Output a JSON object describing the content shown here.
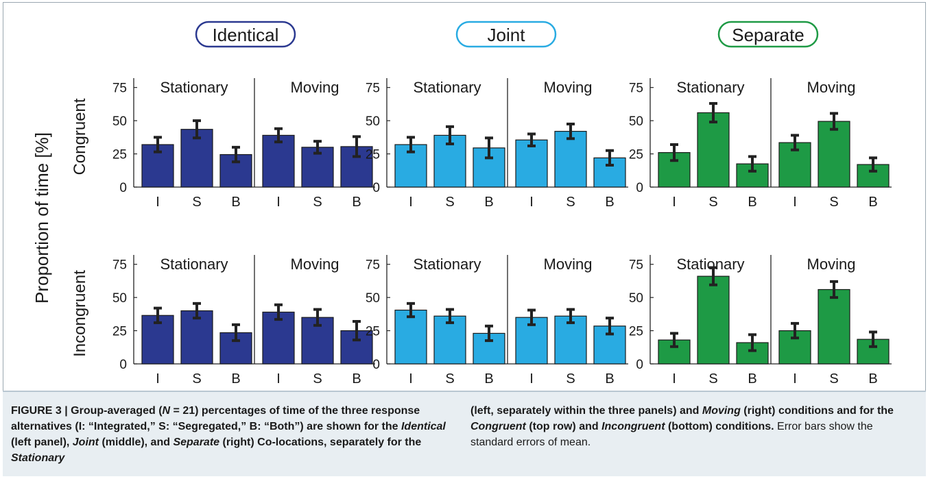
{
  "colors": {
    "identical": "#2b3990",
    "joint": "#29abe2",
    "separate": "#1e9a45",
    "text": "#1a1a1a"
  },
  "ylabel": "Proportion of time [%]",
  "row_labels": [
    "Congruent",
    "Incongruent"
  ],
  "panel_titles": [
    "Identical",
    "Joint",
    "Separate"
  ],
  "subplot_titles": [
    "Stationary",
    "Moving"
  ],
  "chart_data": {
    "type": "bar",
    "categories": [
      "I",
      "S",
      "B"
    ],
    "yticks": [
      "0",
      "25",
      "50",
      "75"
    ],
    "ylim": [
      0,
      80
    ],
    "values": {
      "Identical": {
        "Congruent": {
          "Stationary": [
            32,
            43.5,
            24.5
          ],
          "Moving": [
            39,
            30,
            30.5
          ]
        },
        "Incongruent": {
          "Stationary": [
            36.5,
            40,
            23.5
          ],
          "Moving": [
            39,
            35,
            25
          ]
        }
      },
      "Joint": {
        "Congruent": {
          "Stationary": [
            32,
            39,
            29.5
          ],
          "Moving": [
            35.5,
            42,
            22
          ]
        },
        "Incongruent": {
          "Stationary": [
            40.5,
            36,
            23
          ],
          "Moving": [
            35,
            36,
            28.5
          ]
        }
      },
      "Separate": {
        "Congruent": {
          "Stationary": [
            26,
            56,
            17.5
          ],
          "Moving": [
            33.5,
            49.5,
            17
          ]
        },
        "Incongruent": {
          "Stationary": [
            18,
            66,
            16
          ],
          "Moving": [
            25,
            56,
            18.5
          ]
        }
      }
    },
    "errors": {
      "Identical": {
        "Congruent": {
          "Stationary": [
            5.5,
            6.5,
            5.5
          ],
          "Moving": [
            5,
            4.5,
            7.5
          ]
        },
        "Incongruent": {
          "Stationary": [
            5.5,
            5.5,
            6
          ],
          "Moving": [
            5.5,
            6,
            7
          ]
        }
      },
      "Joint": {
        "Congruent": {
          "Stationary": [
            5.5,
            6.5,
            7.5
          ],
          "Moving": [
            4.5,
            5.5,
            5.5
          ]
        },
        "Incongruent": {
          "Stationary": [
            5,
            5,
            5.5
          ],
          "Moving": [
            5.5,
            5,
            6
          ]
        }
      },
      "Separate": {
        "Congruent": {
          "Stationary": [
            6,
            7,
            5.5
          ],
          "Moving": [
            5.5,
            6,
            5
          ]
        },
        "Incongruent": {
          "Stationary": [
            5,
            6.5,
            6
          ],
          "Moving": [
            5.5,
            6,
            5.5
          ]
        }
      }
    }
  },
  "caption": {
    "label": "FIGURE 3 | ",
    "p1": "Group-averaged (",
    "n": "N",
    "p2": " = 21) percentages of time of the three response alternatives (I: “Integrated,” S: “Segregated,” B: “Both”) are shown for the ",
    "identical": "Identical",
    "p3": " (left panel), ",
    "joint": "Joint",
    "p4": " (middle), and ",
    "separate": "Separate",
    "p5": " (right) Co-locations, separately for the ",
    "stationary": "Stationary",
    "p6": " (left, separately within the three panels) and ",
    "moving": "Moving",
    "p7": " (right) conditions and for the ",
    "congruent": "Congruent",
    "p8": " (top row) and ",
    "incongruent": "Incongruent",
    "p9": " (bottom) conditions.",
    "p10": " Error bars show the standard errors of mean."
  }
}
